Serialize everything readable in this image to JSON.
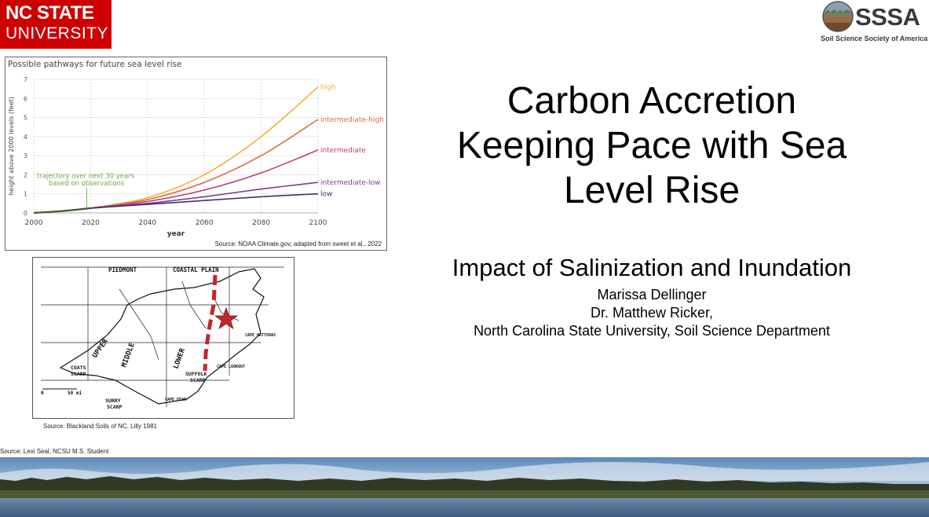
{
  "logo_left": {
    "line1": "NC STATE",
    "line2": "UNIVERSITY",
    "color": "#cc0000"
  },
  "logo_right": {
    "abbr": "SSSA",
    "name": "Soil Science Society of America"
  },
  "title": [
    "Carbon Accretion",
    "Keeping Pace with Sea",
    "Level Rise"
  ],
  "subtitle": "Impact of Salinization and Inundation",
  "authors": [
    "Marissa Dellinger",
    "Dr. Matthew Ricker,",
    "North Carolina State University, Soil Science Department"
  ],
  "map_source": "Source: Blackland Soils of NC, Lilly 1981",
  "photo_source": "Source: Lexi Seal, NCSU M.S. Student",
  "map": {
    "region_labels": [
      "PIEDMONT",
      "COASTAL PLAIN"
    ],
    "zone_labels": [
      "UPPER",
      "MIDDLE",
      "LOWER"
    ],
    "place_labels": [
      "CAPE HATTERAS",
      "CAPE LOOKOUT",
      "CAPE FEAR"
    ],
    "scarp_labels": [
      [
        "COATS",
        "SCARP"
      ],
      [
        "SUFFOLK",
        "SCARP"
      ],
      [
        "SURRY",
        "SCARP"
      ]
    ],
    "scale": [
      "0",
      "50 mi"
    ],
    "marker_color": "#c0282d"
  },
  "chart_data": {
    "type": "line",
    "title": "Possible pathways for future sea level rise",
    "xlabel": "year",
    "ylabel": "height above 2000 levels (feet)",
    "source": "Source: NOAA Climate.gov, adapted from sweet et al., 2022",
    "xlim": [
      2000,
      2100
    ],
    "ylim": [
      0,
      7
    ],
    "x_ticks": [
      2000,
      2020,
      2040,
      2060,
      2080,
      2100
    ],
    "y_ticks": [
      0,
      1,
      2,
      3,
      4,
      5,
      6,
      7
    ],
    "grid": true,
    "observed": {
      "name": "trajectory over next 30 years based on observations",
      "label_lines": [
        "trajectory over next 30 years",
        "based on observations"
      ],
      "color": "#6aa84f",
      "x": [
        2000,
        2005,
        2010,
        2015,
        2020
      ],
      "y": [
        0.0,
        0.05,
        0.1,
        0.17,
        0.25
      ]
    },
    "series": [
      {
        "name": "high",
        "color": "#f2b233",
        "x": [
          2020,
          2040,
          2060,
          2080,
          2100
        ],
        "y": [
          0.25,
          0.8,
          2.0,
          4.0,
          6.6
        ]
      },
      {
        "name": "intermediate-high",
        "color": "#e0693a",
        "x": [
          2020,
          2040,
          2060,
          2080,
          2100
        ],
        "y": [
          0.25,
          0.7,
          1.6,
          3.0,
          4.9
        ]
      },
      {
        "name": "intermediate",
        "color": "#b5456e",
        "x": [
          2020,
          2040,
          2060,
          2080,
          2100
        ],
        "y": [
          0.25,
          0.6,
          1.2,
          2.1,
          3.3
        ]
      },
      {
        "name": "intermediate-low",
        "color": "#7a3f8c",
        "x": [
          2020,
          2040,
          2060,
          2080,
          2100
        ],
        "y": [
          0.25,
          0.5,
          0.85,
          1.25,
          1.6
        ]
      },
      {
        "name": "low",
        "color": "#3f2d6b",
        "x": [
          2020,
          2040,
          2060,
          2080,
          2100
        ],
        "y": [
          0.25,
          0.45,
          0.65,
          0.85,
          1.0
        ]
      }
    ]
  }
}
